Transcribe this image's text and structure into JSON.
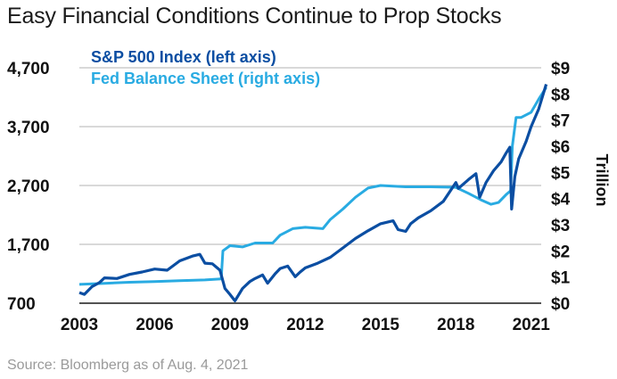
{
  "chart_data": {
    "type": "line",
    "title": "Easy Financial Conditions Continue to Prop Stocks",
    "source": "Source: Bloomberg as of Aug. 4, 2021",
    "x_ticks": [
      "2003",
      "2006",
      "2009",
      "2012",
      "2015",
      "2018",
      "2021"
    ],
    "x_tick_values": [
      2003,
      2006,
      2009,
      2012,
      2015,
      2018,
      2021
    ],
    "xlim": [
      2003,
      2021.4
    ],
    "y_left_ticks": [
      "4,700",
      "3,700",
      "2,700",
      "1,700",
      "700"
    ],
    "y_left_tick_values": [
      4700,
      3700,
      2700,
      1700,
      700
    ],
    "y_left_lim": [
      700,
      4700
    ],
    "y_right_ticks": [
      "$9",
      "$8",
      "$7",
      "$6",
      "$5",
      "$4",
      "$3",
      "$2",
      "$1",
      "$0"
    ],
    "y_right_tick_values": [
      9,
      8,
      7,
      6,
      5,
      4,
      3,
      2,
      1,
      0
    ],
    "y_right_lim": [
      0,
      9
    ],
    "y_right_label": "Trillion",
    "grid": true,
    "legend_position": "top-left",
    "colors": {
      "sp500": "#0b4ea2",
      "fed": "#29abe2",
      "grid": "#b3b3b3",
      "axis": "#1a1a1a"
    },
    "series": [
      {
        "name": "S&P 500 Index (left axis)",
        "axis": "left",
        "color": "#0b4ea2",
        "x": [
          2003.0,
          2003.2,
          2003.5,
          2003.8,
          2004.0,
          2004.5,
          2005.0,
          2005.5,
          2006.0,
          2006.5,
          2007.0,
          2007.5,
          2007.8,
          2008.0,
          2008.3,
          2008.6,
          2008.8,
          2009.0,
          2009.2,
          2009.5,
          2009.8,
          2010.0,
          2010.3,
          2010.5,
          2010.8,
          2011.0,
          2011.3,
          2011.6,
          2011.8,
          2012.0,
          2012.5,
          2013.0,
          2013.5,
          2014.0,
          2014.5,
          2015.0,
          2015.5,
          2015.7,
          2016.0,
          2016.2,
          2016.5,
          2017.0,
          2017.5,
          2018.0,
          2018.1,
          2018.5,
          2018.8,
          2018.95,
          2019.2,
          2019.5,
          2019.8,
          2020.0,
          2020.15,
          2020.22,
          2020.35,
          2020.5,
          2020.8,
          2021.0,
          2021.3,
          2021.6
        ],
        "values": [
          880,
          850,
          980,
          1050,
          1130,
          1120,
          1190,
          1230,
          1280,
          1260,
          1420,
          1500,
          1530,
          1380,
          1370,
          1260,
          950,
          850,
          740,
          950,
          1070,
          1120,
          1180,
          1040,
          1200,
          1290,
          1330,
          1150,
          1230,
          1300,
          1380,
          1480,
          1640,
          1800,
          1930,
          2050,
          2100,
          1950,
          1920,
          2050,
          2150,
          2270,
          2430,
          2750,
          2650,
          2800,
          2900,
          2500,
          2750,
          2950,
          3100,
          3250,
          3350,
          2300,
          2850,
          3150,
          3450,
          3700,
          4000,
          4420
        ]
      },
      {
        "name": "Fed Balance Sheet (right axis)",
        "axis": "right",
        "color": "#29abe2",
        "x": [
          2003.0,
          2004.0,
          2005.0,
          2006.0,
          2007.0,
          2008.0,
          2008.65,
          2008.72,
          2009.0,
          2009.5,
          2010.0,
          2010.7,
          2011.0,
          2011.5,
          2012.0,
          2012.7,
          2013.0,
          2013.5,
          2014.0,
          2014.5,
          2015.0,
          2016.0,
          2017.0,
          2018.0,
          2018.5,
          2019.0,
          2019.4,
          2019.7,
          2020.0,
          2020.18,
          2020.25,
          2020.4,
          2020.6,
          2020.8,
          2021.0,
          2021.3,
          2021.6
        ],
        "values": [
          0.72,
          0.76,
          0.8,
          0.83,
          0.86,
          0.89,
          0.93,
          2.0,
          2.2,
          2.15,
          2.3,
          2.3,
          2.6,
          2.85,
          2.9,
          2.85,
          3.2,
          3.6,
          4.05,
          4.4,
          4.5,
          4.45,
          4.45,
          4.43,
          4.2,
          3.95,
          3.78,
          3.85,
          4.15,
          4.3,
          6.0,
          7.1,
          7.1,
          7.2,
          7.3,
          7.8,
          8.25
        ]
      }
    ]
  }
}
